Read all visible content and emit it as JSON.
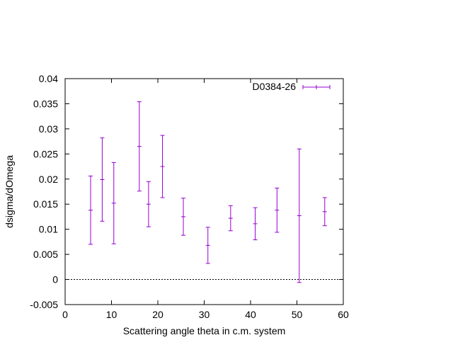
{
  "chart_data": {
    "type": "scatter",
    "title": "",
    "xlabel": "Scattering angle theta in c.m. system",
    "ylabel": "dsigma/dOmega",
    "xlim": [
      0,
      60
    ],
    "ylim": [
      -0.005,
      0.04
    ],
    "x_ticks": [
      "0",
      "10",
      "20",
      "30",
      "40",
      "50",
      "60"
    ],
    "y_ticks": [
      "-0.005",
      "0",
      "0.005",
      "0.01",
      "0.015",
      "0.02",
      "0.025",
      "0.03",
      "0.035",
      "0.04"
    ],
    "grid": false,
    "zero_line": true,
    "legend_position": "top-right",
    "series": [
      {
        "name": "D0384-26",
        "color": "#9400d3",
        "style": "errorbars",
        "points": [
          {
            "x": 5.5,
            "y": 0.0138,
            "err": 0.0068
          },
          {
            "x": 8.0,
            "y": 0.0199,
            "err": 0.0083
          },
          {
            "x": 10.5,
            "y": 0.0152,
            "err": 0.0081
          },
          {
            "x": 16.0,
            "y": 0.0265,
            "err": 0.0089
          },
          {
            "x": 18.0,
            "y": 0.015,
            "err": 0.0045
          },
          {
            "x": 21.0,
            "y": 0.0225,
            "err": 0.0062
          },
          {
            "x": 25.5,
            "y": 0.0125,
            "err": 0.0037
          },
          {
            "x": 30.8,
            "y": 0.0068,
            "err": 0.0036
          },
          {
            "x": 35.7,
            "y": 0.0122,
            "err": 0.0025
          },
          {
            "x": 41.0,
            "y": 0.0111,
            "err": 0.0032
          },
          {
            "x": 45.7,
            "y": 0.0138,
            "err": 0.0044
          },
          {
            "x": 50.5,
            "y": 0.0127,
            "err": 0.0133
          },
          {
            "x": 56.0,
            "y": 0.0135,
            "err": 0.0028
          }
        ]
      }
    ]
  }
}
